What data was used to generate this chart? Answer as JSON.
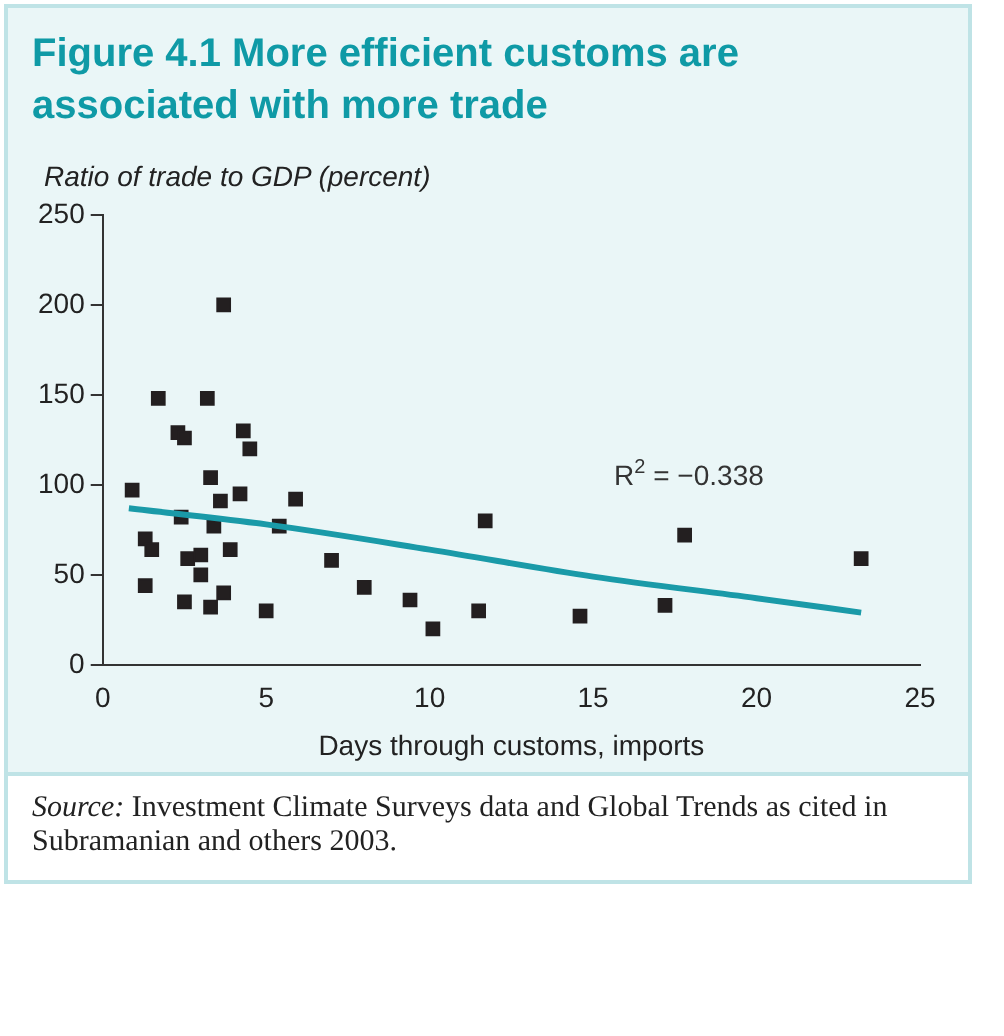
{
  "chart_data": {
    "type": "scatter",
    "title": "Figure 4.1  More efficient customs are associated with more trade",
    "ylabel": "Ratio of trade to GDP (percent)",
    "xlabel": "Days through customs, imports",
    "annotations": [
      "R$^{2}$ = −0.338",
      "Source: Investment Climate Surveys data and Global Trends as cited in Subramanian and others 2003."
    ],
    "series": [
      {
        "marker": "square",
        "color": "#231f20",
        "x": [
          0.9,
          1.3,
          1.5,
          1.3,
          1.7,
          2.3,
          2.5,
          2.4,
          2.6,
          2.5,
          3.0,
          3.2,
          3.3,
          3.3,
          3.4,
          3.7,
          3.6,
          3.7,
          3.9,
          4.2,
          4.3,
          4.5,
          5.0,
          5.4,
          5.9,
          7.0,
          8.0,
          9.4,
          10.1,
          11.5,
          11.7,
          14.6,
          17.2,
          17.8,
          23.2,
          3.0
        ],
        "values": [
          97,
          70,
          64,
          44,
          148,
          129,
          126,
          82,
          59,
          35,
          61,
          148,
          104,
          32,
          77,
          200,
          91,
          40,
          64,
          95,
          130,
          120,
          30,
          77,
          92,
          58,
          43,
          36,
          20,
          30,
          80,
          27,
          33,
          72,
          59,
          50
        ]
      },
      {
        "type": "line",
        "color": "#1a9aa8",
        "x": [
          0.8,
          5,
          10,
          15,
          20,
          23.2
        ],
        "values": [
          87,
          78,
          64,
          49,
          37,
          29
        ]
      }
    ],
    "xlim": [
      0,
      25
    ],
    "xticks": [
      0,
      5,
      10,
      15,
      20,
      25
    ],
    "ylim": [
      0,
      250
    ],
    "yticks": [
      0,
      50,
      100,
      150,
      200,
      250
    ],
    "grid": false,
    "legend": false
  }
}
